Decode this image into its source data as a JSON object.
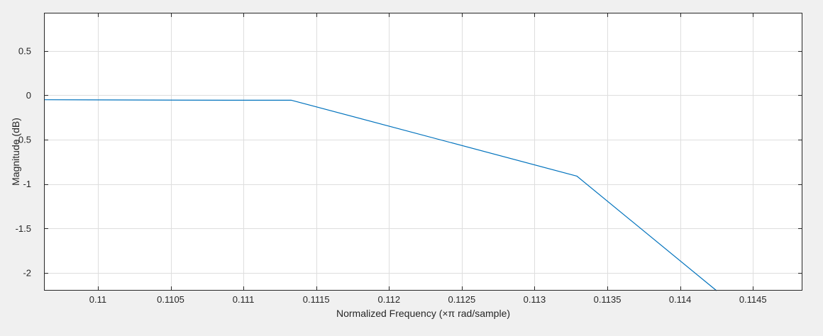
{
  "chart_data": {
    "type": "line",
    "title": "",
    "xlabel": "Normalized Frequency  (×π rad/sample)",
    "ylabel": "Magnitude (dB)",
    "xlim": [
      0.10963,
      0.11484
    ],
    "ylim": [
      -2.2,
      0.93
    ],
    "xticks": [
      0.11,
      0.1105,
      0.111,
      0.1115,
      0.112,
      0.1125,
      0.113,
      0.1135,
      0.114,
      0.1145
    ],
    "xtick_labels": [
      "0.11",
      "0.1105",
      "0.111",
      "0.1115",
      "0.112",
      "0.1125",
      "0.113",
      "0.1135",
      "0.114",
      "0.1145"
    ],
    "yticks": [
      0.5,
      0,
      -0.5,
      -1,
      -1.5,
      -2
    ],
    "ytick_labels": [
      "0.5",
      "0",
      "-0.5",
      "-1",
      "-1.5",
      "-2"
    ],
    "grid": true,
    "series": [
      {
        "color": "#0072bd",
        "x": [
          0.10963,
          0.1109,
          0.1113,
          0.11133,
          0.11329,
          0.11425
        ],
        "y": [
          -0.05,
          -0.055,
          -0.055,
          -0.055,
          -0.91,
          -2.2
        ]
      }
    ]
  },
  "colors": {
    "background": "#f0f0f0",
    "axes_bg": "#ffffff",
    "grid": "#dedede",
    "axis": "#262626"
  }
}
